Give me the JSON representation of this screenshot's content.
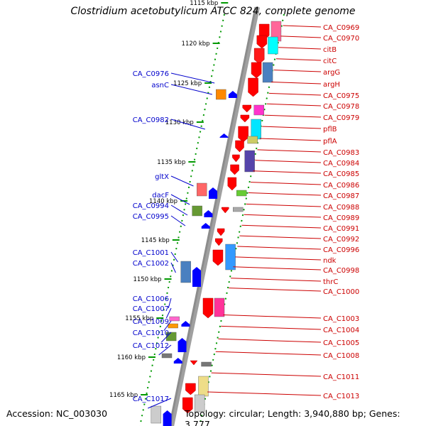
{
  "title": "Clostridium acetobutylicum ATCC 824, complete genome",
  "footer": {
    "accession": "Accession: NC_003030",
    "summary": "Topology: circular; Length: 3,940,880 bp; Genes: 3,777"
  },
  "colors": {
    "forward_gene": "#ff0000",
    "reverse_gene": "#0000ff",
    "right_label": "#cc0000",
    "left_label": "#0000cc",
    "ticks": "#009900",
    "backbone": "#8c8c8c"
  },
  "scale_ticks": [
    "1115 kbp",
    "1120 kbp",
    "1125 kbp",
    "1130 kbp",
    "1135 kbp",
    "1140 kbp",
    "1145 kbp",
    "1150 kbp",
    "1155 kbp",
    "1160 kbp",
    "1165 kbp"
  ],
  "forward_labels": [
    "CA_C0969",
    "CA_C0970",
    "citB",
    "citC",
    "argG",
    "argH",
    "CA_C0975",
    "CA_C0978",
    "CA_C0979",
    "pflB",
    "pflA",
    "CA_C0983",
    "CA_C0984",
    "CA_C0985",
    "CA_C0986",
    "CA_C0987",
    "CA_C0988",
    "CA_C0989",
    "CA_C0991",
    "CA_C0992",
    "CA_C0996",
    "ndk",
    "CA_C0998",
    "thrC",
    "CA_C1000",
    "CA_C1003",
    "CA_C1004",
    "CA_C1005",
    "CA_C1008",
    "CA_C1011",
    "CA_C1013"
  ],
  "reverse_labels": [
    "CA_C0976",
    "asnC",
    "CA_C0982",
    "gltX",
    "dacF",
    "CA_C0994",
    "CA_C0995",
    "CA_C1001",
    "CA_C1002",
    "CA_C1006",
    "CA_C1007",
    "CA_C1009",
    "CA_C1010",
    "CA_C1012",
    "CA_C1017"
  ]
}
